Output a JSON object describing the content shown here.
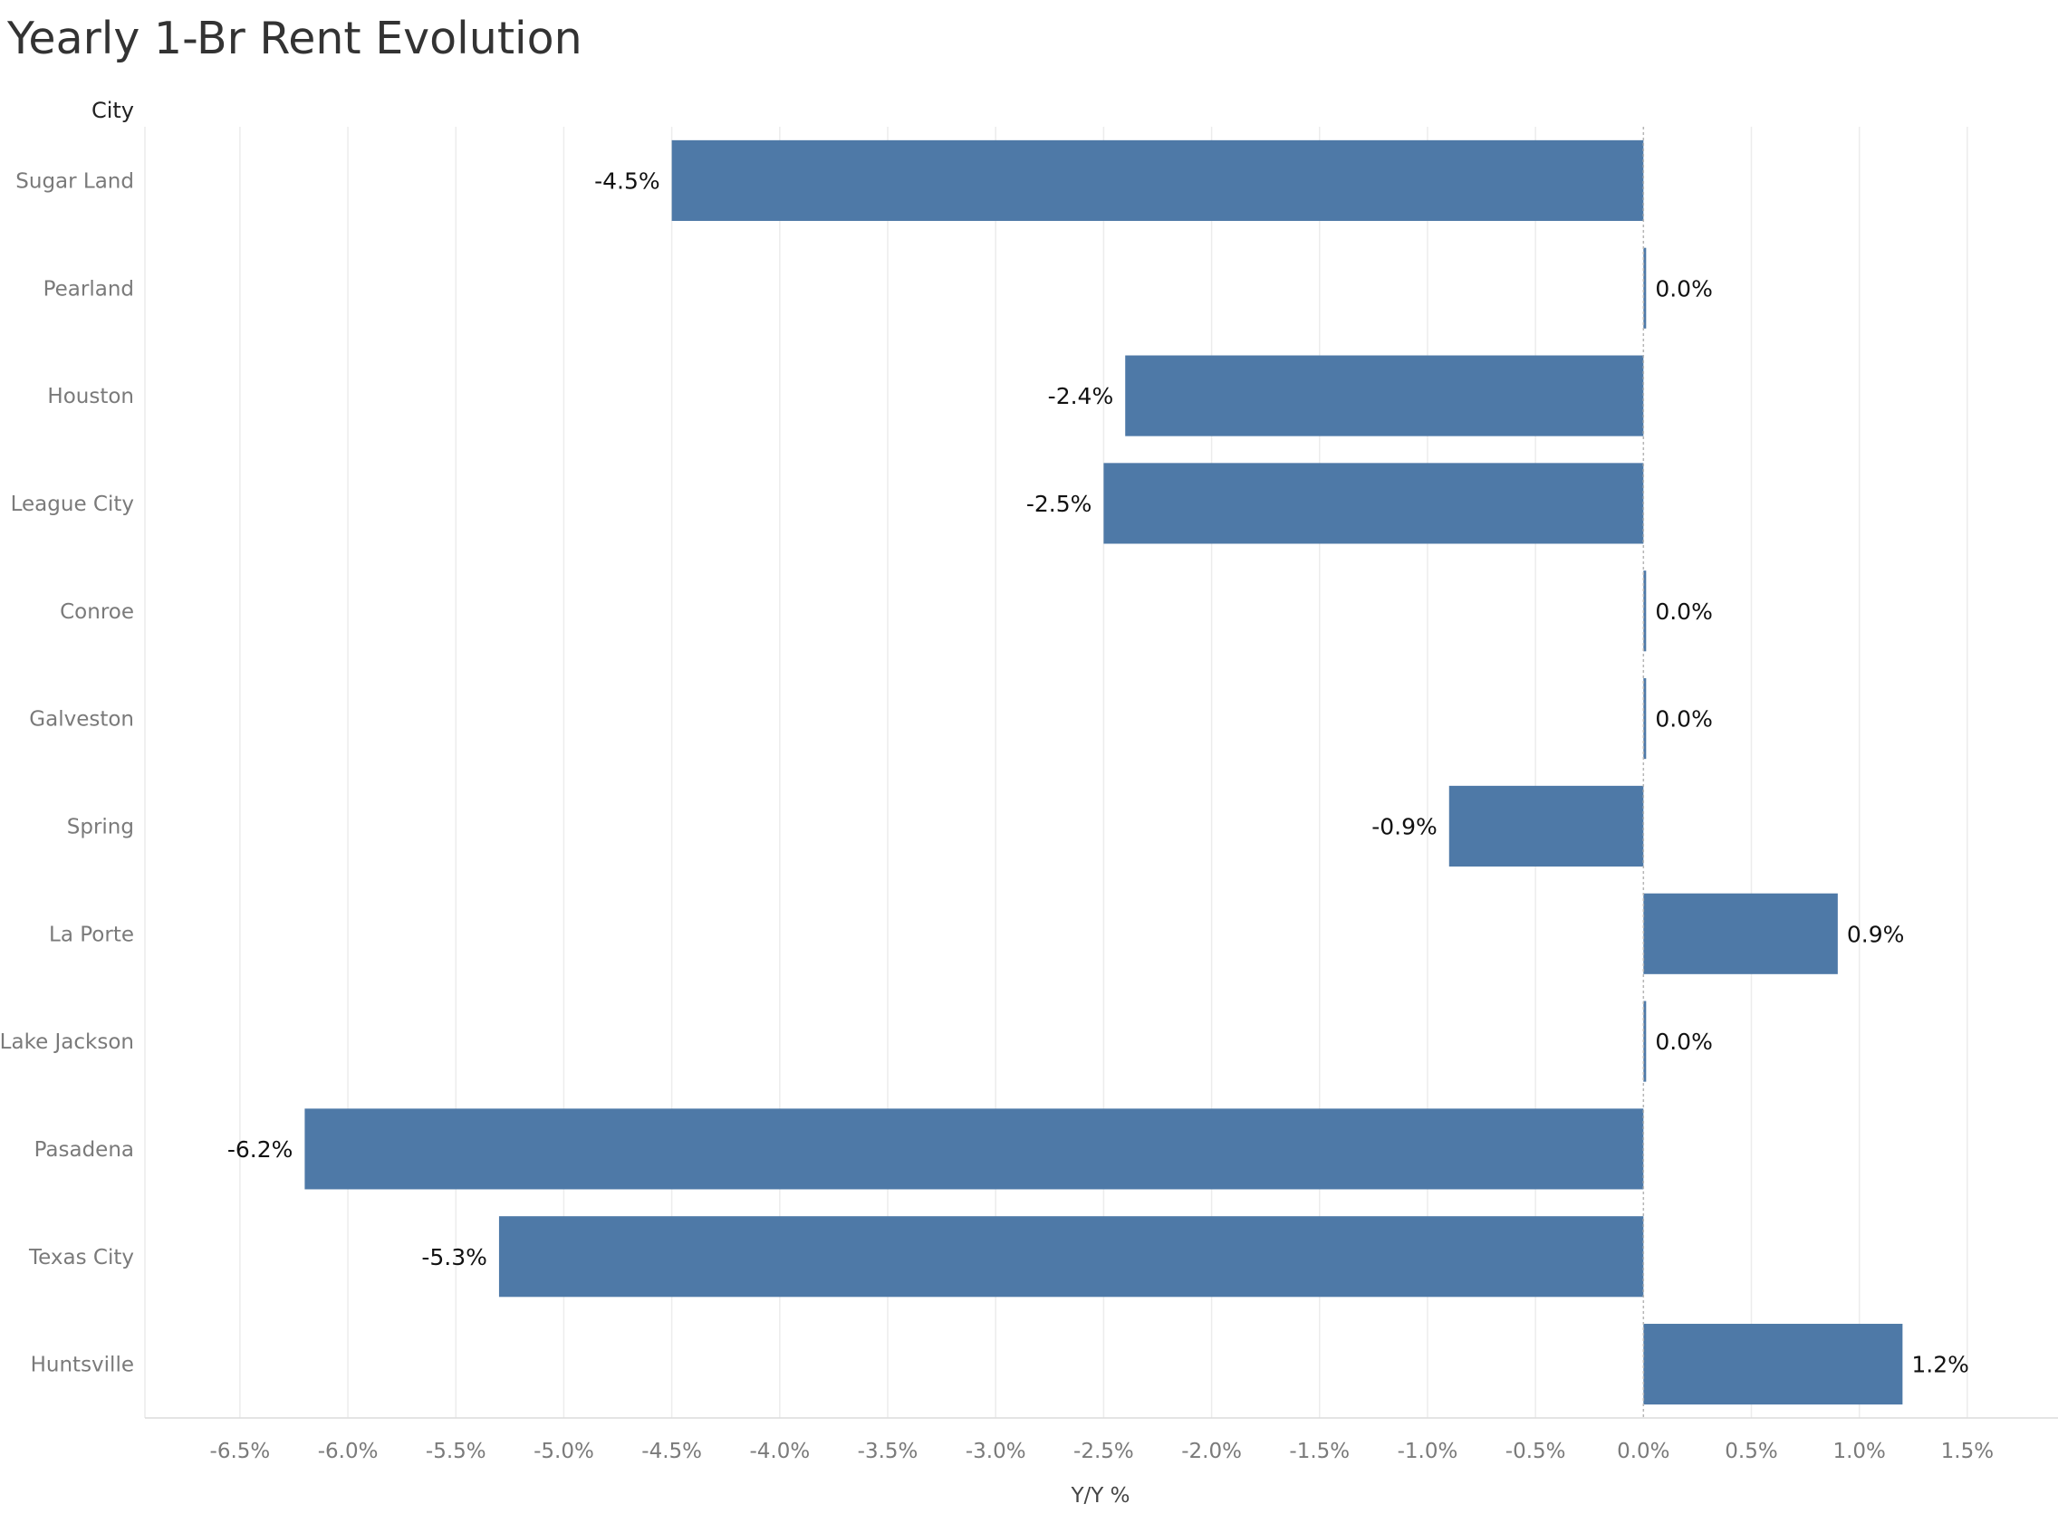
{
  "chart_data": {
    "type": "bar",
    "orientation": "horizontal",
    "title": "Yearly 1-Br Rent Evolution",
    "category_header": "City",
    "xlabel": "Y/Y %",
    "categories": [
      "Sugar Land",
      "Pearland",
      "Houston",
      "League City",
      "Conroe",
      "Galveston",
      "Spring",
      "La Porte",
      "Lake Jackson",
      "Pasadena",
      "Texas City",
      "Huntsville"
    ],
    "values": [
      -4.5,
      0.0,
      -2.4,
      -2.5,
      0.0,
      0.0,
      -0.9,
      0.9,
      0.0,
      -6.2,
      -5.3,
      1.2
    ],
    "value_labels": [
      "-4.5%",
      "0.0%",
      "-2.4%",
      "-2.5%",
      "0.0%",
      "0.0%",
      "-0.9%",
      "0.9%",
      "0.0%",
      "-6.2%",
      "-5.3%",
      "1.2%"
    ],
    "x_ticks": [
      -6.5,
      -6.0,
      -5.5,
      -5.0,
      -4.5,
      -4.0,
      -3.5,
      -3.0,
      -2.5,
      -2.0,
      -1.5,
      -1.0,
      -0.5,
      0.0,
      0.5,
      1.0,
      1.5
    ],
    "x_tick_labels": [
      "-6.5%",
      "-6.0%",
      "-5.5%",
      "-5.0%",
      "-4.5%",
      "-4.0%",
      "-3.5%",
      "-3.0%",
      "-2.5%",
      "-2.0%",
      "-1.5%",
      "-1.0%",
      "-0.5%",
      "0.0%",
      "0.5%",
      "1.0%",
      "1.5%"
    ],
    "xlim": [
      -6.94,
      1.92
    ],
    "grid": true,
    "legend": "none",
    "bar_color": "#4e79a7",
    "gridline_color": "#ececec",
    "zero_line_color": "#b5b5b5"
  }
}
